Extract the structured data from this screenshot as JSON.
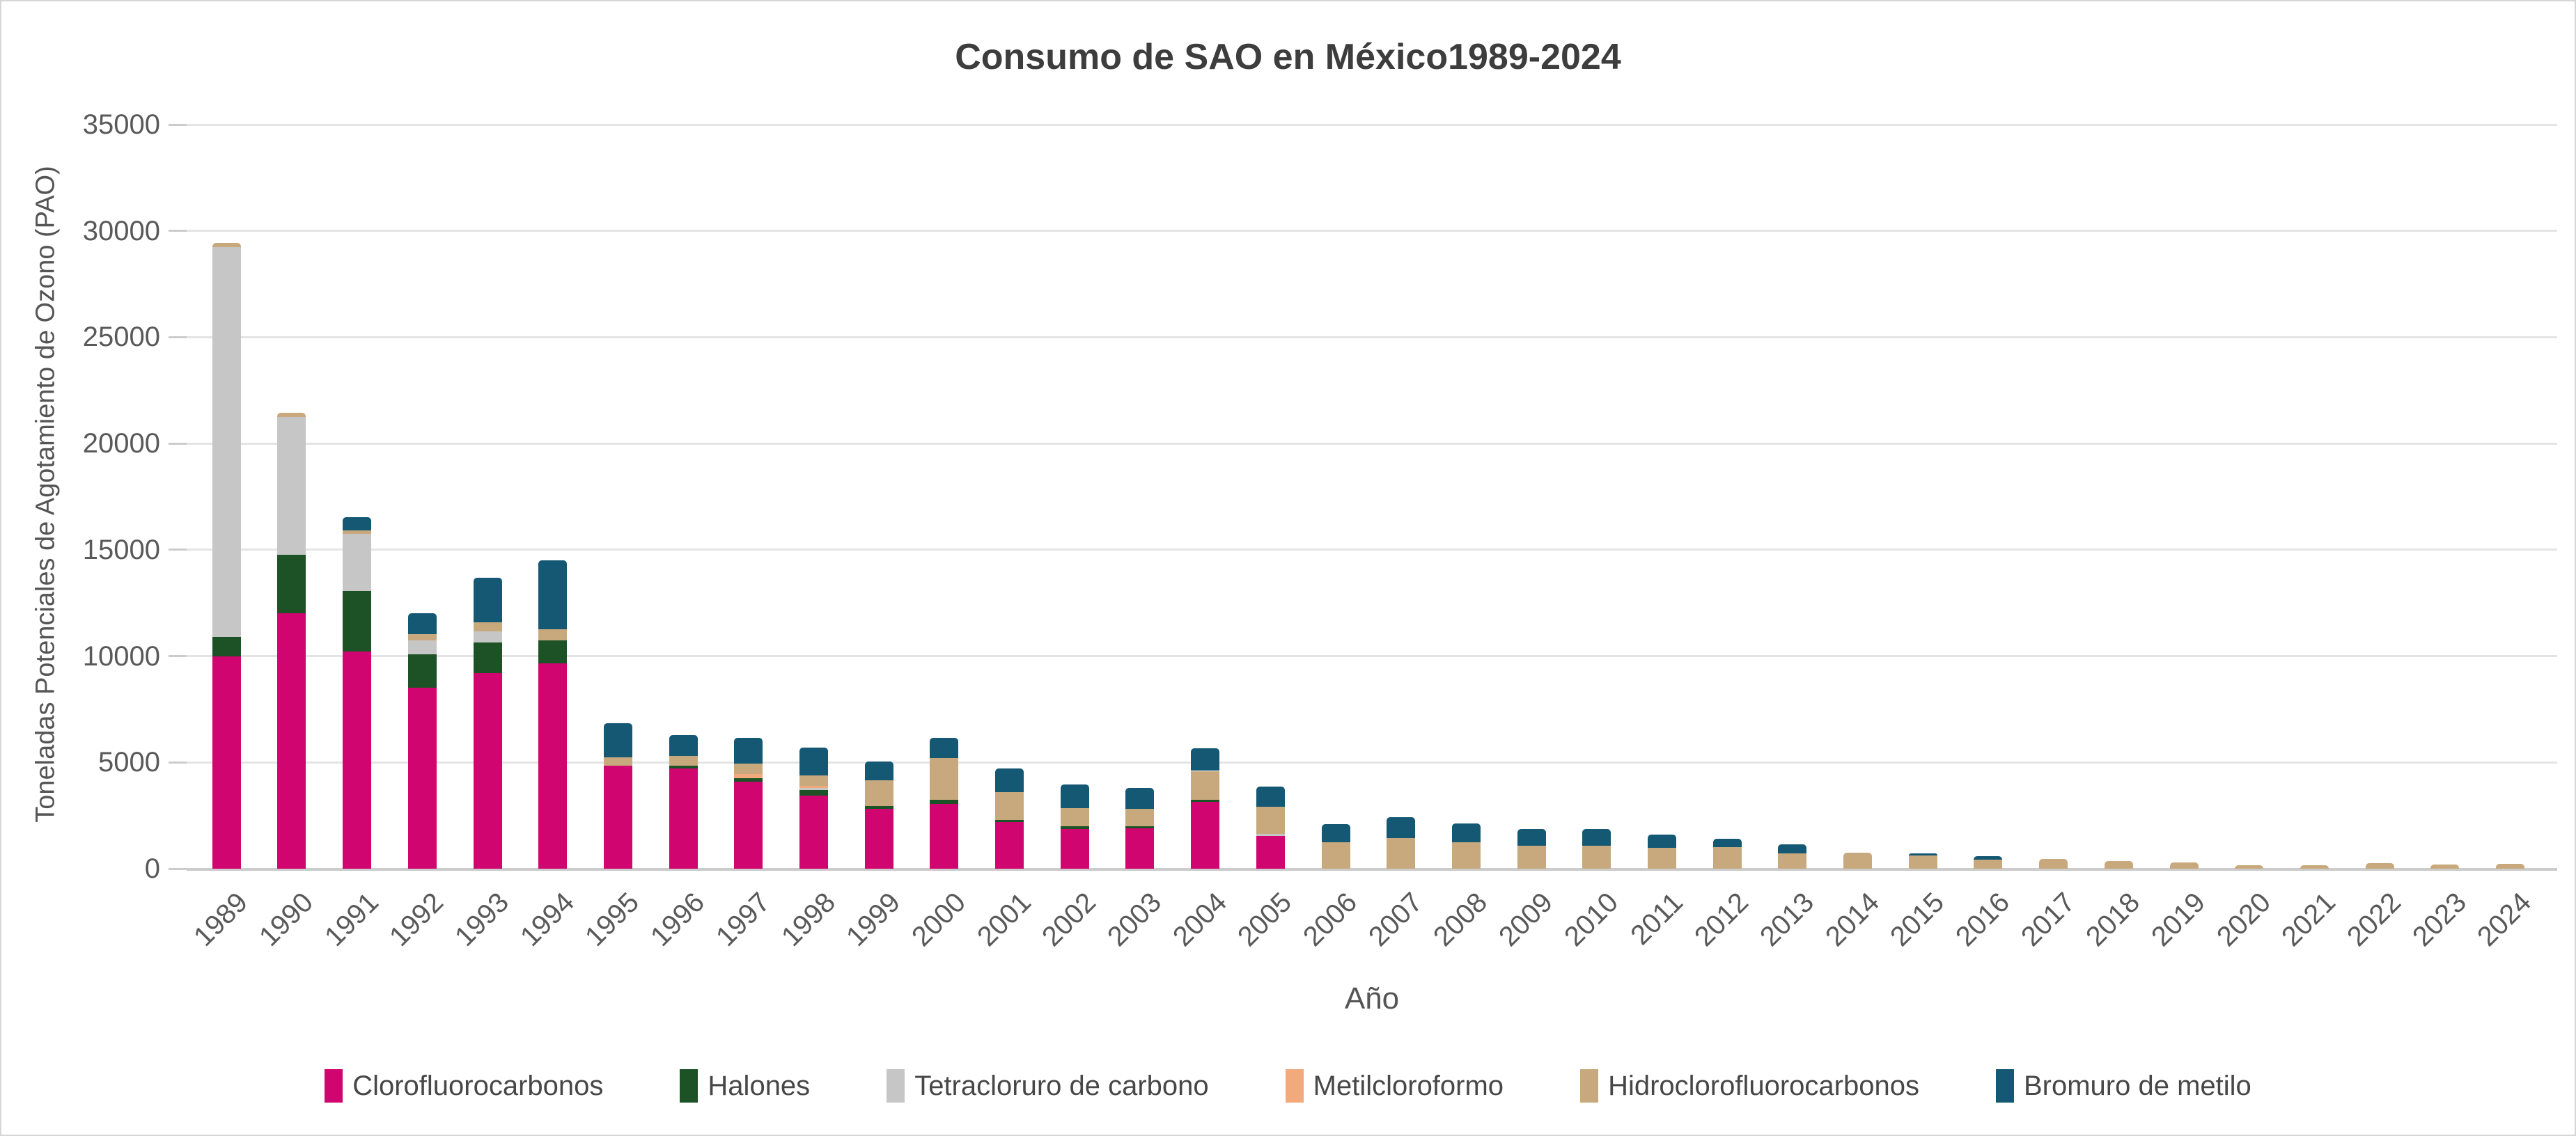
{
  "chart_data": {
    "type": "bar",
    "stacked": true,
    "title": "Consumo de SAO en México1989-2024",
    "xlabel": "Año",
    "ylabel": "Toneladas Potenciales de Agotamiento de Ozono (PAO)",
    "ylim": [
      0,
      35000
    ],
    "ytick_step": 5000,
    "yticks": [
      0,
      5000,
      10000,
      15000,
      20000,
      25000,
      30000,
      35000
    ],
    "grid": "horizontal",
    "legend_position": "bottom",
    "categories": [
      "1989",
      "1990",
      "1991",
      "1992",
      "1993",
      "1994",
      "1995",
      "1996",
      "1997",
      "1998",
      "1999",
      "2000",
      "2001",
      "2002",
      "2003",
      "2004",
      "2005",
      "2006",
      "2007",
      "2008",
      "2009",
      "2010",
      "2011",
      "2012",
      "2013",
      "2014",
      "2015",
      "2016",
      "2017",
      "2018",
      "2019",
      "2020",
      "2021",
      "2022",
      "2023",
      "2024"
    ],
    "series": [
      {
        "name": "Clorofluorocarbonos",
        "color": "#d0056f",
        "values": [
          10000,
          12000,
          10200,
          8500,
          9200,
          9650,
          4850,
          4700,
          4100,
          3450,
          2800,
          3050,
          2200,
          1850,
          1900,
          3150,
          1550,
          0,
          0,
          0,
          0,
          0,
          0,
          0,
          0,
          0,
          0,
          0,
          0,
          0,
          0,
          0,
          0,
          0,
          0,
          0
        ]
      },
      {
        "name": "Halones",
        "color": "#1c5226",
        "values": [
          900,
          2750,
          2850,
          1600,
          1450,
          1100,
          0,
          150,
          150,
          250,
          150,
          200,
          100,
          150,
          100,
          100,
          0,
          0,
          0,
          0,
          0,
          0,
          0,
          0,
          0,
          0,
          0,
          0,
          0,
          0,
          0,
          0,
          0,
          0,
          0,
          0
        ]
      },
      {
        "name": "Tetracloruro de carbono",
        "color": "#c6c6c6",
        "values": [
          18350,
          6500,
          2700,
          650,
          500,
          0,
          0,
          0,
          0,
          100,
          0,
          0,
          0,
          0,
          0,
          0,
          100,
          0,
          0,
          0,
          0,
          0,
          0,
          0,
          0,
          0,
          0,
          0,
          0,
          0,
          0,
          0,
          0,
          0,
          0,
          0
        ]
      },
      {
        "name": "Metilcloroformo",
        "color": "#f2a97c",
        "values": [
          0,
          0,
          0,
          0,
          0,
          0,
          0,
          0,
          200,
          100,
          0,
          0,
          0,
          0,
          0,
          0,
          0,
          0,
          0,
          0,
          0,
          0,
          0,
          0,
          0,
          0,
          0,
          0,
          0,
          0,
          0,
          0,
          0,
          0,
          0,
          0
        ]
      },
      {
        "name": "Hidroclorofluorocarbonos",
        "color": "#c8a97e",
        "values": [
          200,
          200,
          150,
          300,
          450,
          500,
          400,
          450,
          500,
          500,
          1200,
          1950,
          1300,
          850,
          800,
          1350,
          1250,
          1250,
          1450,
          1230,
          1070,
          1070,
          990,
          1000,
          710,
          740,
          610,
          430,
          450,
          350,
          280,
          180,
          180,
          250,
          200,
          220
        ]
      },
      {
        "name": "Bromuro de metilo",
        "color": "#155873",
        "values": [
          0,
          0,
          620,
          950,
          2100,
          3250,
          1600,
          1000,
          1200,
          1300,
          900,
          950,
          1100,
          1100,
          1000,
          1050,
          950,
          850,
          980,
          900,
          810,
          790,
          610,
          420,
          420,
          0,
          100,
          150,
          0,
          0,
          0,
          0,
          0,
          0,
          0,
          0
        ]
      }
    ]
  }
}
